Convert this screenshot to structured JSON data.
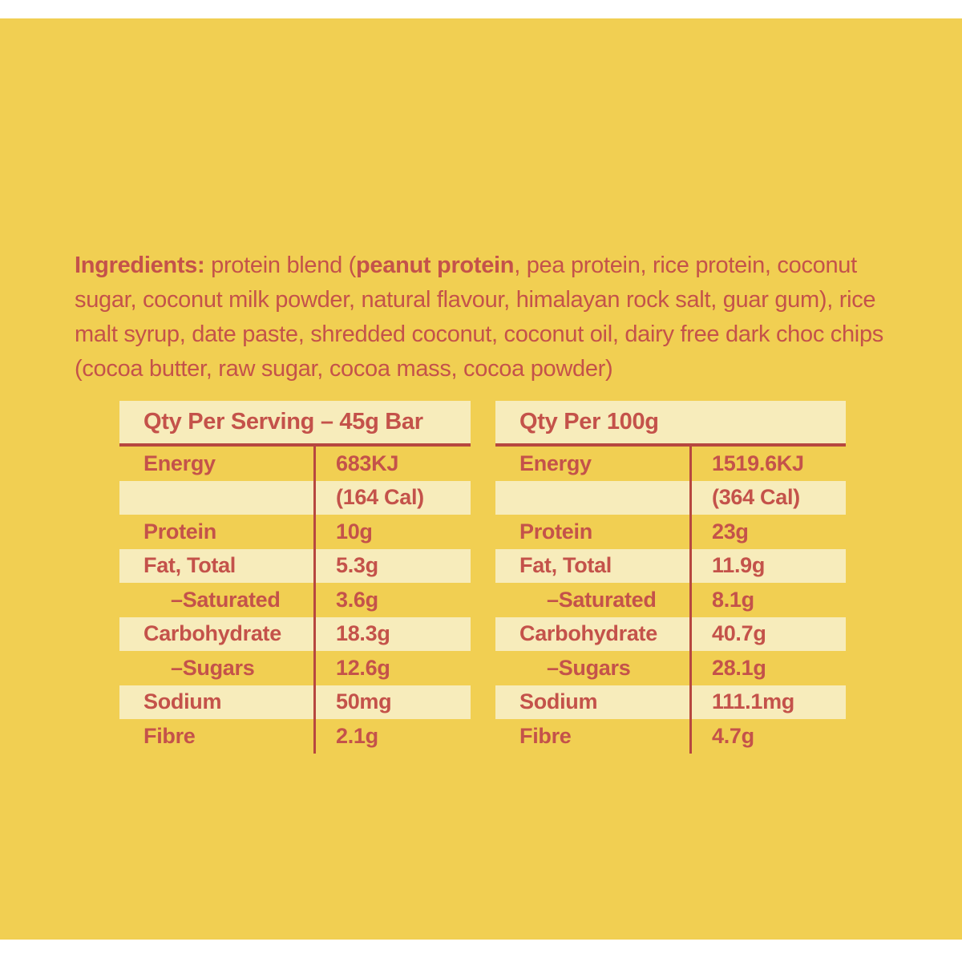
{
  "colors": {
    "background_yellow": "#F1CF52",
    "band_cream": "#F7ECBB",
    "text_red": "#C4524A",
    "line_red": "#B7473F",
    "page_margin_white": "#FFFFFF"
  },
  "ingredients": {
    "label": "Ingredients:",
    "pre": " protein blend (",
    "highlight": "peanut protein",
    "rest": ", pea protein, rice protein, coconut sugar, coconut milk powder, natural flavour, himalayan rock salt, guar gum), rice malt syrup, date paste, shredded coconut, coconut oil, dairy free dark choc chips (cocoa butter, raw sugar, cocoa mass, cocoa powder)"
  },
  "tables": [
    {
      "header": "Qty Per Serving – 45g Bar",
      "rows": [
        {
          "label": "Energy",
          "value": "683KJ",
          "indent": false
        },
        {
          "label": "",
          "value": "(164 Cal)",
          "indent": false
        },
        {
          "label": "Protein",
          "value": "10g",
          "indent": false
        },
        {
          "label": "Fat, Total",
          "value": "5.3g",
          "indent": false
        },
        {
          "label": "–Saturated",
          "value": "3.6g",
          "indent": true
        },
        {
          "label": "Carbohydrate",
          "value": "18.3g",
          "indent": false
        },
        {
          "label": "–Sugars",
          "value": "12.6g",
          "indent": true
        },
        {
          "label": "Sodium",
          "value": "50mg",
          "indent": false
        },
        {
          "label": "Fibre",
          "value": "2.1g",
          "indent": false
        }
      ]
    },
    {
      "header": "Qty Per 100g",
      "rows": [
        {
          "label": "Energy",
          "value": "1519.6KJ",
          "indent": false
        },
        {
          "label": "",
          "value": "(364 Cal)",
          "indent": false
        },
        {
          "label": "Protein",
          "value": "23g",
          "indent": false
        },
        {
          "label": "Fat, Total",
          "value": "11.9g",
          "indent": false
        },
        {
          "label": "–Saturated",
          "value": "8.1g",
          "indent": true
        },
        {
          "label": "Carbohydrate",
          "value": "40.7g",
          "indent": false
        },
        {
          "label": "–Sugars",
          "value": "28.1g",
          "indent": true
        },
        {
          "label": "Sodium",
          "value": "111.1mg",
          "indent": false
        },
        {
          "label": "Fibre",
          "value": "4.7g",
          "indent": false
        }
      ]
    }
  ]
}
